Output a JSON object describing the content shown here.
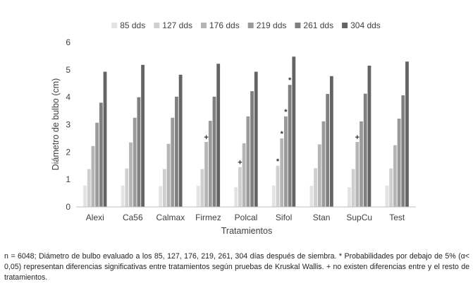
{
  "chart_data": {
    "type": "bar",
    "title": "",
    "xlabel": "Tratamientos",
    "ylabel": "Diámetro de bulbo (cm)",
    "ylim": [
      0,
      6
    ],
    "yticks": [
      "0",
      "1",
      "2",
      "3",
      "4",
      "5",
      "6"
    ],
    "grid": false,
    "legend_position": "top",
    "categories": [
      "Alexi",
      "Ca56",
      "Calmax",
      "Firmez",
      "Polcal",
      "Sifol",
      "Stan",
      "SupCu",
      "Test"
    ],
    "series": [
      {
        "name": "85 dds",
        "color": "#e3e3e3",
        "values": [
          0.78,
          0.78,
          0.76,
          0.77,
          0.72,
          0.78,
          0.77,
          0.72,
          0.78
        ]
      },
      {
        "name": "127 dds",
        "color": "#cfcfcf",
        "values": [
          1.38,
          1.4,
          1.38,
          1.38,
          1.45,
          1.5,
          1.41,
          1.38,
          1.4
        ]
      },
      {
        "name": "176 dds",
        "color": "#b5b5b5",
        "values": [
          2.22,
          2.35,
          2.3,
          2.37,
          2.32,
          2.5,
          2.28,
          2.37,
          2.25
        ]
      },
      {
        "name": "219 dds",
        "color": "#9a9a9a",
        "values": [
          3.07,
          3.25,
          3.25,
          3.14,
          3.3,
          3.3,
          3.12,
          3.12,
          3.22
        ]
      },
      {
        "name": "261 dds",
        "color": "#808080",
        "values": [
          3.8,
          4.0,
          4.02,
          4.02,
          4.22,
          4.45,
          4.12,
          4.13,
          4.07
        ]
      },
      {
        "name": "304 dds",
        "color": "#646464",
        "values": [
          4.93,
          5.18,
          4.82,
          5.22,
          4.93,
          5.48,
          4.77,
          5.15,
          5.3
        ]
      }
    ],
    "annotations": [
      {
        "category": "Firmez",
        "series": "176 dds",
        "text": "+"
      },
      {
        "category": "Polcal",
        "series": "127 dds",
        "text": "+"
      },
      {
        "category": "Sifol",
        "series": "127 dds",
        "text": "*"
      },
      {
        "category": "Sifol",
        "series": "176 dds",
        "text": "*"
      },
      {
        "category": "Sifol",
        "series": "219 dds",
        "text": "*"
      },
      {
        "category": "Sifol",
        "series": "261 dds",
        "text": "*"
      },
      {
        "category": "SupCu",
        "series": "176 dds",
        "text": "+"
      }
    ]
  },
  "caption": "n = 6048; Diámetro de bulbo evaluado a los 85, 127, 176, 219, 261, 304 días después de siembra. * Probabilidades por debajo de 5% (α< 0,05) representan diferencias significativas entre tratamientos según pruebas de Kruskal Wallis. + no existen diferencias entre y el resto de tratamientos."
}
